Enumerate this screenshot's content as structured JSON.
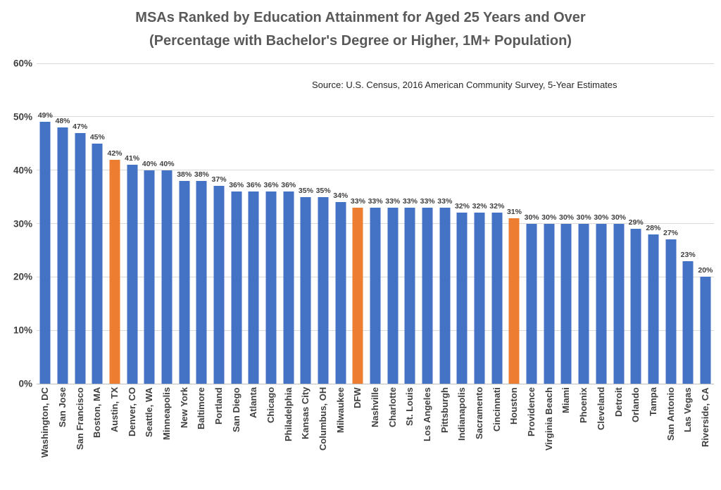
{
  "title": {
    "line1": "MSAs Ranked by Education Attainment for Aged 25 Years and Over",
    "line2": "(Percentage with Bachelor's Degree or Higher, 1M+ Population)"
  },
  "source_note": "Source: U.S. Census, 2016 American Community Survey, 5-Year Estimates",
  "colors": {
    "bar_default": "#4472C4",
    "bar_highlight": "#ED7D31",
    "gridline": "#D9D9D9",
    "axis_line": "#BFBFBF",
    "title_text": "#595959",
    "label_text": "#404040"
  },
  "chart_data": {
    "type": "bar",
    "title": "MSAs Ranked by Education Attainment for Aged 25 Years and Over (Percentage with Bachelor's Degree or Higher, 1M+ Population)",
    "xlabel": "",
    "ylabel": "",
    "ylim": [
      0,
      60
    ],
    "y_ticks": [
      "0%",
      "10%",
      "20%",
      "30%",
      "40%",
      "50%",
      "60%"
    ],
    "grid": true,
    "legend": false,
    "value_label_suffix": "%",
    "highlighted_categories": [
      "Austin, TX",
      "DFW",
      "Houston"
    ],
    "categories": [
      "Washington, DC",
      "San Jose",
      "San Francisco",
      "Boston, MA",
      "Austin, TX",
      "Denver, CO",
      "Seattle, WA",
      "Minneapolis",
      "New York",
      "Baltimore",
      "Portland",
      "San Diego",
      "Atlanta",
      "Chicago",
      "Philadelphia",
      "Kansas City",
      "Columbus, OH",
      "Milwaukee",
      "DFW",
      "Nashville",
      "Charlotte",
      "St. Louis",
      "Los Angeles",
      "Pittsburgh",
      "Indianapolis",
      "Sacramento",
      "Cincinnati",
      "Houston",
      "Providence",
      "Virginia Beach",
      "Miami",
      "Phoenix",
      "Cleveland",
      "Detroit",
      "Orlando",
      "Tampa",
      "San Antonio",
      "Las Vegas",
      "Riverside, CA"
    ],
    "values": [
      49,
      48,
      47,
      45,
      42,
      41,
      40,
      40,
      38,
      38,
      37,
      36,
      36,
      36,
      36,
      35,
      35,
      34,
      33,
      33,
      33,
      33,
      33,
      33,
      32,
      32,
      32,
      31,
      30,
      30,
      30,
      30,
      30,
      30,
      29,
      28,
      27,
      23,
      20
    ]
  }
}
